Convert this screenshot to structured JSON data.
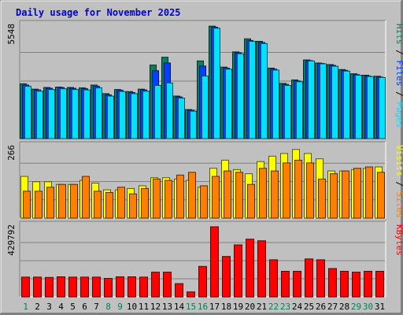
{
  "chart_data": {
    "type": "bar",
    "title": "Daily usage for November 2025",
    "categories": [
      "1",
      "2",
      "3",
      "4",
      "5",
      "6",
      "7",
      "8",
      "9",
      "10",
      "11",
      "12",
      "13",
      "14",
      "15",
      "16",
      "17",
      "18",
      "19",
      "20",
      "21",
      "22",
      "23",
      "24",
      "25",
      "26",
      "27",
      "28",
      "29",
      "30",
      "31"
    ],
    "weekend_days": [
      "1",
      "8",
      "9",
      "15",
      "16",
      "22",
      "23",
      "29",
      "30"
    ],
    "colors": {
      "hits": "#00805c",
      "files": "#0040ff",
      "pages": "#00e0ff",
      "visits": "#ffff00",
      "sites": "#ff8000",
      "kbytes": "#ff0000",
      "weekday_label": "#000000",
      "weekend_label": "#00805c",
      "title": "#0000c8"
    },
    "panels": [
      {
        "name": "hits-files-pages",
        "ymax_label": "5548",
        "ylim": [
          0,
          5548
        ],
        "side_label": [
          {
            "text": "Pages",
            "color": "#00e0ff"
          },
          {
            "text": " / ",
            "color": "#000000"
          },
          {
            "text": "Files",
            "color": "#0040ff"
          },
          {
            "text": " / ",
            "color": "#000000"
          },
          {
            "text": "Hits",
            "color": "#00805c"
          }
        ],
        "series": [
          {
            "name": "Hits",
            "color": "#00805c",
            "values": [
              2680,
              2420,
              2500,
              2520,
              2500,
              2480,
              2620,
              2200,
              2400,
              2300,
              2420,
              3600,
              3980,
              2080,
              1420,
              3800,
              5500,
              3500,
              4240,
              4880,
              4760,
              3450,
              2700,
              2870,
              3850,
              3700,
              3620,
              3380,
              3170,
              3100,
              3050
            ]
          },
          {
            "name": "Files",
            "color": "#0040ff",
            "values": [
              2620,
              2380,
              2460,
              2500,
              2460,
              2440,
              2560,
              2140,
              2360,
              2250,
              2380,
              3320,
              3700,
              2040,
              1380,
              3550,
              5450,
              3450,
              4200,
              4800,
              4700,
              3400,
              2650,
              2820,
              3820,
              3680,
              3580,
              3340,
              3130,
              3060,
              3010
            ]
          },
          {
            "name": "Pages",
            "color": "#00e0ff",
            "values": [
              2560,
              2320,
              2400,
              2440,
              2400,
              2380,
              2480,
              2080,
              2300,
              2200,
              2320,
              2600,
              2720,
              1980,
              1340,
              3060,
              5400,
              3400,
              4150,
              4760,
              4650,
              3350,
              2600,
              2780,
              3800,
              3660,
              3540,
              3300,
              3100,
              3040,
              2990
            ]
          }
        ]
      },
      {
        "name": "visits-sites",
        "ymax_label": "266",
        "ylim": [
          0,
          266
        ],
        "side_label": [
          {
            "text": "Sites",
            "color": "#ff8000"
          },
          {
            "text": " / ",
            "color": "#000000"
          },
          {
            "text": "Visits",
            "color": "#ffff00"
          }
        ],
        "series": [
          {
            "name": "Visits",
            "color": "#ffff00",
            "values": [
              155,
              135,
              135,
              125,
              125,
              140,
              130,
              105,
              105,
              110,
              120,
              150,
              150,
              145,
              140,
              115,
              185,
              215,
              180,
              165,
              210,
              230,
              240,
              255,
              240,
              220,
              175,
              175,
              180,
              185,
              190
            ]
          },
          {
            "name": "Sites",
            "color": "#ff8000",
            "values": [
              100,
              100,
              115,
              125,
              125,
              155,
              100,
              95,
              115,
              90,
              110,
              145,
              140,
              160,
              170,
              120,
              155,
              175,
              170,
              125,
              185,
              175,
              205,
              215,
              205,
              145,
              165,
              175,
              185,
              190,
              170
            ]
          }
        ]
      },
      {
        "name": "kbytes",
        "ymax_label": "429792",
        "ylim": [
          0,
          429792
        ],
        "side_label": [
          {
            "text": "KBytes",
            "color": "#ff0000"
          }
        ],
        "series": [
          {
            "name": "KBytes",
            "color": "#ff0000",
            "values": [
              120000,
              120000,
              118000,
              122000,
              120000,
              120000,
              120000,
              112000,
              122000,
              122000,
              120000,
              150000,
              150000,
              80000,
              30000,
              185000,
              425000,
              245000,
              315000,
              350000,
              340000,
              225000,
              155000,
              155000,
              230000,
              225000,
              172000,
              155000,
              150000,
              155000,
              155000
            ]
          }
        ]
      }
    ]
  }
}
